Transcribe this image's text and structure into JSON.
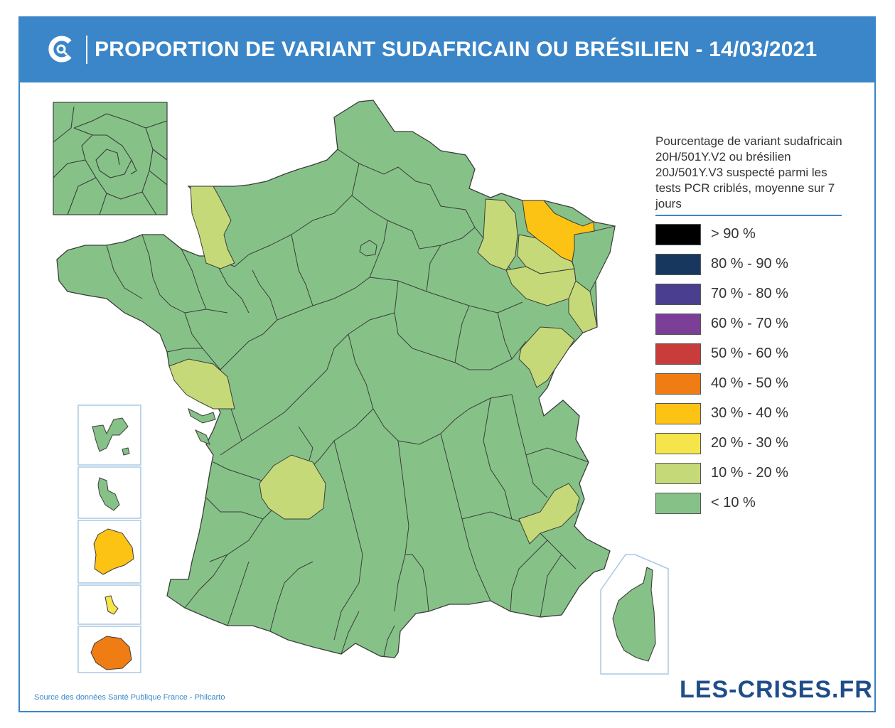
{
  "header": {
    "title": "PROPORTION DE VARIANT SUDAFRICAIN OU BRÉSILIEN - 14/03/2021",
    "logo_icon": "les-crises-logo-icon"
  },
  "legend": {
    "title": "Pourcentage de variant sudafricain 20H/501Y.V2 ou brésilien 20J/501Y.V3 suspecté parmi les tests PCR criblés, moyenne sur 7 jours",
    "items": [
      {
        "label": "> 90 %",
        "color": "#000000"
      },
      {
        "label": "80 % - 90 %",
        "color": "#17375e"
      },
      {
        "label": "70 % - 80 %",
        "color": "#4a3f8f"
      },
      {
        "label": "60 % - 70 %",
        "color": "#7b3f98"
      },
      {
        "label": "50 % - 60 %",
        "color": "#c93c3c"
      },
      {
        "label": "40 % - 50 %",
        "color": "#ef7d14"
      },
      {
        "label": "30 % - 40 %",
        "color": "#fcc214"
      },
      {
        "label": "20 % - 30 %",
        "color": "#f5e54b"
      },
      {
        "label": "10 % - 20 %",
        "color": "#c6d978"
      },
      {
        "label": "< 10 %",
        "color": "#86c288"
      }
    ]
  },
  "map": {
    "colors": {
      "lt10": "#86c288",
      "10to20": "#c6d978",
      "30to40": "#fcc214",
      "40to50": "#ef7d14",
      "border": "#3c3c3c",
      "inset_border": "#a9c8e4"
    },
    "regions": [
      {
        "name": "France métropolitaine",
        "category": "< 10 %"
      },
      {
        "name": "Paris et petite couronne",
        "category": "< 10 %"
      },
      {
        "name": "Guadeloupe",
        "category": "< 10 %"
      },
      {
        "name": "Martinique",
        "category": "< 10 %"
      },
      {
        "name": "Guyane",
        "category": "30 % - 40 %"
      },
      {
        "name": "Mayotte",
        "category": "20 % - 30 %"
      },
      {
        "name": "La Réunion",
        "category": "40 % - 50 %"
      },
      {
        "name": "Corse",
        "category": "< 10 %"
      }
    ]
  },
  "footer": {
    "source": "Source des données Santé Publique France - Philcarto",
    "brand": "LES-CRISES.FR"
  }
}
